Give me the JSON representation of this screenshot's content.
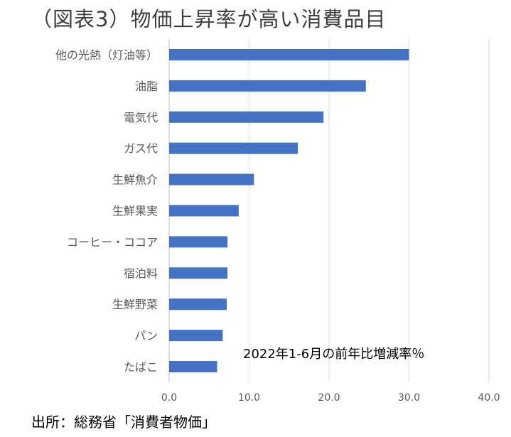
{
  "title": "（図表3）物価上昇率が高い消費品目",
  "annotation": "2022年1-6月の前年比増減率％",
  "source": "出所：総務省「消費者物価」",
  "colors": {
    "bar": "#4472C4",
    "grid": "#D9D9D9",
    "axis": "#BFBFBF",
    "text": "#595959"
  },
  "chart_data": {
    "type": "bar",
    "orientation": "horizontal",
    "categories": [
      "他の光熱（灯油等）",
      "油脂",
      "電気代",
      "ガス代",
      "生鮮魚介",
      "生鮮果実",
      "コーヒー・ココア",
      "宿泊料",
      "生鮮野菜",
      "パン",
      "たばこ"
    ],
    "values": [
      30.0,
      24.6,
      19.3,
      16.1,
      10.6,
      8.7,
      7.3,
      7.3,
      7.2,
      6.7,
      6.0
    ],
    "xlim": [
      0,
      40
    ],
    "xticks": [
      "0.0",
      "10.0",
      "20.0",
      "30.0",
      "40.0"
    ],
    "grid": true,
    "xlabel": "",
    "ylabel": ""
  }
}
